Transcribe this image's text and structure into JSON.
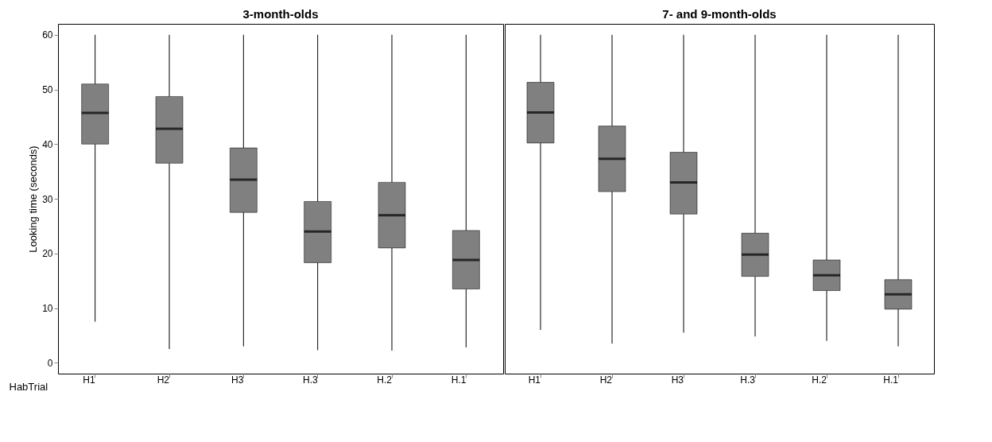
{
  "chart_data": [
    {
      "type": "box",
      "title": "3-month-olds",
      "xlabel": "HabTrial",
      "ylabel": "Looking time (seconds)",
      "categories": [
        "H1",
        "H2",
        "H3",
        "H.3",
        "H.2",
        "H.1"
      ],
      "ylim": [
        -2,
        62
      ],
      "yticks": [
        0,
        10,
        20,
        30,
        40,
        50,
        60
      ],
      "grid": false,
      "series": [
        {
          "color": "#808080",
          "boxes": [
            {
              "low": 7.5,
              "q1": 40,
              "median": 45.7,
              "q3": 51,
              "high": 60
            },
            {
              "low": 2.5,
              "q1": 36.5,
              "median": 42.8,
              "q3": 48.7,
              "high": 60
            },
            {
              "low": 3,
              "q1": 27.5,
              "median": 33.5,
              "q3": 39.3,
              "high": 60
            },
            {
              "low": 2.3,
              "q1": 18.3,
              "median": 24,
              "q3": 29.5,
              "high": 60
            },
            {
              "low": 2.2,
              "q1": 21,
              "median": 27,
              "q3": 33,
              "high": 60
            },
            {
              "low": 2.8,
              "q1": 13.5,
              "median": 18.8,
              "q3": 24.2,
              "high": 60
            }
          ]
        }
      ]
    },
    {
      "type": "box",
      "title": "7- and 9-month-olds",
      "categories": [
        "H1",
        "H2",
        "H3",
        "H.3",
        "H.2",
        "H.1"
      ],
      "ylim": [
        -2,
        62
      ],
      "yticks": [
        0,
        10,
        20,
        30,
        40,
        50,
        60
      ],
      "tick_labels": "x",
      "grid": false,
      "series": [
        {
          "color": "#808080",
          "boxes": [
            {
              "low": 6,
              "q1": 40.2,
              "median": 45.8,
              "q3": 51.3,
              "high": 60
            },
            {
              "low": 3.5,
              "q1": 31.3,
              "median": 37.3,
              "q3": 43.3,
              "high": 60
            },
            {
              "low": 5.5,
              "q1": 27.2,
              "median": 33,
              "q3": 38.5,
              "high": 60
            },
            {
              "low": 4.8,
              "q1": 15.8,
              "median": 19.8,
              "q3": 23.7,
              "high": 60
            },
            {
              "low": 4,
              "q1": 13.2,
              "median": 16,
              "q3": 18.8,
              "high": 60
            },
            {
              "low": 3,
              "q1": 9.8,
              "median": 12.5,
              "q3": 15.2,
              "high": 60
            }
          ]
        }
      ]
    }
  ]
}
